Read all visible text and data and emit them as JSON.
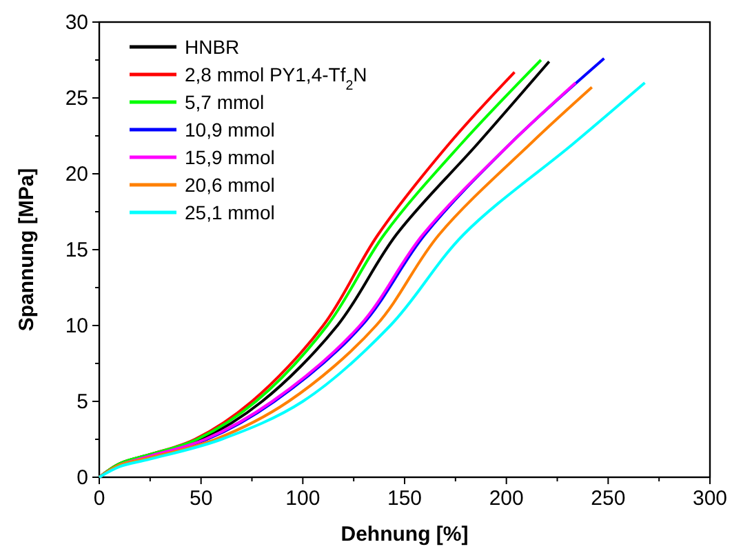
{
  "chart_data": {
    "type": "line",
    "xlabel": "Dehnung [%]",
    "ylabel": "Spannung [MPa]",
    "xlim": [
      0,
      300
    ],
    "ylim": [
      0,
      30
    ],
    "xticks": [
      0,
      {
        "value": 25,
        "label": null
      },
      50,
      {
        "value": 75,
        "label": null
      },
      100,
      {
        "value": 125,
        "label": null
      },
      150,
      {
        "value": 175,
        "label": null
      },
      200,
      {
        "value": 225,
        "label": null
      },
      250,
      {
        "value": 275,
        "label": null
      },
      300
    ],
    "yticks": [
      0,
      {
        "value": 2.5,
        "label": null
      },
      5,
      {
        "value": 7.5,
        "label": null
      },
      10,
      {
        "value": 12.5,
        "label": null
      },
      15,
      {
        "value": 17.5,
        "label": null
      },
      20,
      {
        "value": 22.5,
        "label": null
      },
      25,
      {
        "value": 27.5,
        "label": null
      },
      30
    ],
    "grid": false,
    "legend": "top left",
    "marker": "none",
    "line_style": "solid",
    "series": [
      {
        "name": "HNBR",
        "color": "#000000",
        "x": [
          0,
          10,
          25,
          50,
          80,
          117,
          146,
          186,
          221
        ],
        "values": [
          0,
          0.9,
          1.5,
          2.5,
          5,
          10,
          16,
          22,
          27.4
        ]
      },
      {
        "name": "2,8 mmol PY1,4-Tf$_{2}$N",
        "color": "#ff0000",
        "x": [
          0,
          10,
          25,
          47,
          75,
          110,
          137,
          172,
          204
        ],
        "values": [
          0,
          0.9,
          1.5,
          2.5,
          5,
          10,
          16,
          22,
          26.7
        ]
      },
      {
        "name": "5,7 mmol",
        "color": "#00ff00",
        "x": [
          0,
          10,
          25,
          48,
          77,
          112,
          140,
          178,
          217
        ],
        "values": [
          0,
          0.9,
          1.5,
          2.5,
          5,
          10,
          16,
          22,
          27.5
        ]
      },
      {
        "name": "10,9 mmol",
        "color": "#0000ff",
        "x": [
          25,
          53,
          86,
          129,
          160,
          202,
          248
        ],
        "values": [
          1.4,
          2.5,
          5,
          10,
          16,
          22,
          27.6
        ]
      },
      {
        "name": "15,9 mmol",
        "color": "#ff00ff",
        "x": [
          0,
          10,
          25,
          52,
          85,
          128,
          159,
          202,
          234
        ],
        "values": [
          0,
          0.8,
          1.4,
          2.5,
          5,
          10,
          16,
          22,
          26
        ]
      },
      {
        "name": "20,6 mmol",
        "color": "#ff8000",
        "x": [
          0,
          10,
          25,
          57,
          93,
          136,
          167,
          212,
          242
        ],
        "values": [
          0,
          0.8,
          1.3,
          2.5,
          5,
          10,
          16,
          22,
          25.7
        ]
      },
      {
        "name": "25,1 mmol",
        "color": "#00ffff",
        "x": [
          0,
          10,
          25,
          60,
          100,
          143,
          179,
          233,
          268
        ],
        "values": [
          0,
          0.7,
          1.2,
          2.5,
          5,
          10,
          16,
          22,
          26
        ]
      }
    ]
  }
}
